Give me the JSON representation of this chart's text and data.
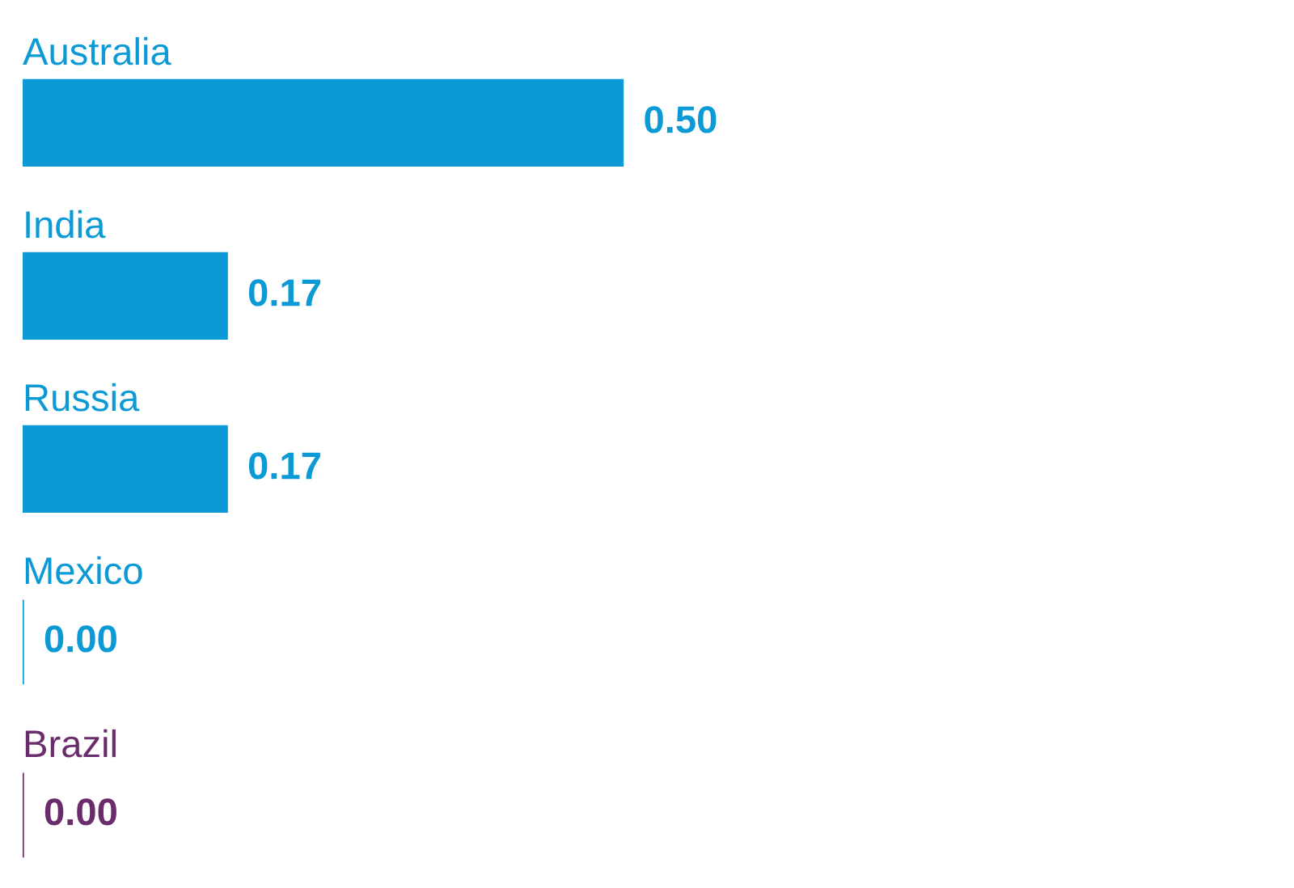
{
  "chart_data": {
    "type": "bar",
    "orientation": "horizontal",
    "categories": [
      "Australia",
      "India",
      "Russia",
      "Mexico",
      "Brazil"
    ],
    "values": [
      0.5,
      0.17,
      0.17,
      0.0,
      0.0
    ],
    "colors": [
      "#0b9ad6",
      "#0b9ad6",
      "#0b9ad6",
      "#0b9ad6",
      "#6a2c6a"
    ],
    "value_labels": [
      "0.50",
      "0.17",
      "0.17",
      "0.00",
      "0.00"
    ]
  }
}
